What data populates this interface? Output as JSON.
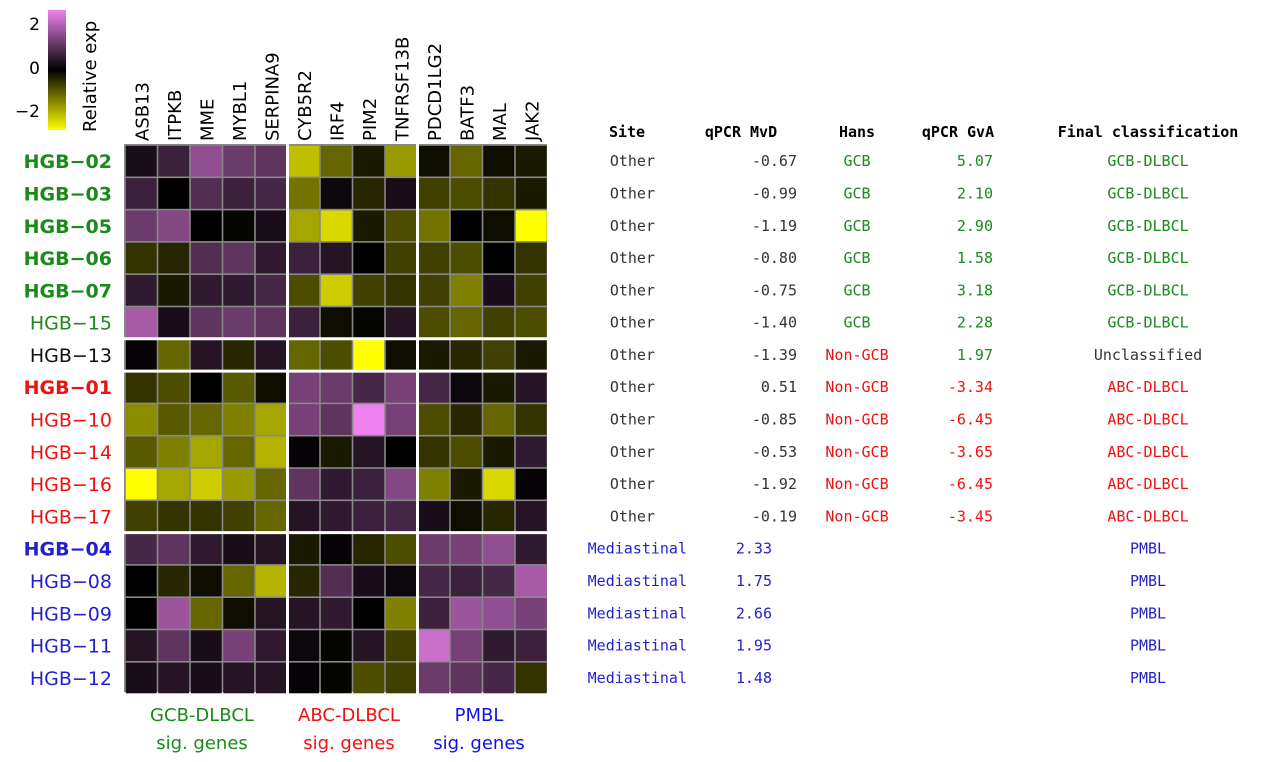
{
  "chart_data": {
    "type": "heatmap",
    "legend": {
      "title": "Relative exp",
      "ticks": [
        "2",
        "0",
        "−2"
      ],
      "range": [
        -2,
        2
      ],
      "colors": {
        "low": "#ffff00",
        "mid": "#000000",
        "high": "#ee82ee"
      }
    },
    "genes": [
      "ASB13",
      "ITPKB",
      "MME",
      "MYBL1",
      "SERPINA9",
      "CYB5R2",
      "IRF4",
      "PIM2",
      "TNFRSF13B",
      "PDCD1LG2",
      "BATF3",
      "MAL",
      "JAK2"
    ],
    "gene_groups": [
      {
        "line1": "GCB-DLBCL",
        "line2": "sig. genes",
        "color": "#1a8a1a"
      },
      {
        "line1": "ABC-DLBCL",
        "line2": "sig. genes",
        "color": "#ee1111"
      },
      {
        "line1": "PMBL",
        "line2": "sig. genes",
        "color": "#1111ee"
      }
    ],
    "table_headers": [
      "Site",
      "qPCR MvD",
      "Hans",
      "qPCR GvA",
      "Final classification"
    ],
    "status_colors": {
      "gcb": "#1a8a1a",
      "abc": "#ee1111",
      "pmbl": "#2222cc",
      "other": "#111111"
    },
    "samples": [
      {
        "id": "HGB−02",
        "bold": true,
        "cls": "gcb",
        "site": "Other",
        "mvd": "-0.67",
        "hans": "GCB",
        "gva": "5.07",
        "final": "GCB-DLBCL"
      },
      {
        "id": "HGB−03",
        "bold": true,
        "cls": "gcb",
        "site": "Other",
        "mvd": "-0.99",
        "hans": "GCB",
        "gva": "2.10",
        "final": "GCB-DLBCL"
      },
      {
        "id": "HGB−05",
        "bold": true,
        "cls": "gcb",
        "site": "Other",
        "mvd": "-1.19",
        "hans": "GCB",
        "gva": "2.90",
        "final": "GCB-DLBCL"
      },
      {
        "id": "HGB−06",
        "bold": true,
        "cls": "gcb",
        "site": "Other",
        "mvd": "-0.80",
        "hans": "GCB",
        "gva": "1.58",
        "final": "GCB-DLBCL"
      },
      {
        "id": "HGB−07",
        "bold": true,
        "cls": "gcb",
        "site": "Other",
        "mvd": "-0.75",
        "hans": "GCB",
        "gva": "3.18",
        "final": "GCB-DLBCL"
      },
      {
        "id": "HGB−15",
        "bold": false,
        "cls": "gcb",
        "site": "Other",
        "mvd": "-1.40",
        "hans": "GCB",
        "gva": "2.28",
        "final": "GCB-DLBCL"
      },
      {
        "id": "HGB−13",
        "bold": false,
        "cls": "other",
        "site": "Other",
        "mvd": "-1.39",
        "hans": "Non-GCB",
        "gva": "1.97",
        "final": "Unclassified"
      },
      {
        "id": "HGB−01",
        "bold": true,
        "cls": "abc",
        "site": "Other",
        "mvd": "0.51",
        "hans": "Non-GCB",
        "gva": "-3.34",
        "final": "ABC-DLBCL"
      },
      {
        "id": "HGB−10",
        "bold": false,
        "cls": "abc",
        "site": "Other",
        "mvd": "-0.85",
        "hans": "Non-GCB",
        "gva": "-6.45",
        "final": "ABC-DLBCL"
      },
      {
        "id": "HGB−14",
        "bold": false,
        "cls": "abc",
        "site": "Other",
        "mvd": "-0.53",
        "hans": "Non-GCB",
        "gva": "-3.65",
        "final": "ABC-DLBCL"
      },
      {
        "id": "HGB−16",
        "bold": false,
        "cls": "abc",
        "site": "Other",
        "mvd": "-1.92",
        "hans": "Non-GCB",
        "gva": "-6.45",
        "final": "ABC-DLBCL"
      },
      {
        "id": "HGB−17",
        "bold": false,
        "cls": "abc",
        "site": "Other",
        "mvd": "-0.19",
        "hans": "Non-GCB",
        "gva": "-3.45",
        "final": "ABC-DLBCL"
      },
      {
        "id": "HGB−04",
        "bold": true,
        "cls": "pmbl",
        "site": "Mediastinal",
        "mvd": "2.33",
        "hans": "",
        "gva": "",
        "final": "PMBL"
      },
      {
        "id": "HGB−08",
        "bold": false,
        "cls": "pmbl",
        "site": "Mediastinal",
        "mvd": "1.75",
        "hans": "",
        "gva": "",
        "final": "PMBL"
      },
      {
        "id": "HGB−09",
        "bold": false,
        "cls": "pmbl",
        "site": "Mediastinal",
        "mvd": "2.66",
        "hans": "",
        "gva": "",
        "final": "PMBL"
      },
      {
        "id": "HGB−11",
        "bold": false,
        "cls": "pmbl",
        "site": "Mediastinal",
        "mvd": "1.95",
        "hans": "",
        "gva": "",
        "final": "PMBL"
      },
      {
        "id": "HGB−12",
        "bold": false,
        "cls": "pmbl",
        "site": "Mediastinal",
        "mvd": "1.48",
        "hans": "",
        "gva": "",
        "final": "PMBL"
      }
    ],
    "values": [
      [
        0.2,
        0.5,
        1.2,
        0.9,
        0.8,
        -1.5,
        -0.8,
        -0.2,
        -1.2,
        -0.1,
        -0.8,
        -0.1,
        -0.2
      ],
      [
        0.5,
        0.0,
        0.7,
        0.5,
        0.6,
        -0.9,
        0.1,
        -0.3,
        0.2,
        -0.5,
        -0.6,
        -0.4,
        -0.2
      ],
      [
        0.9,
        1.1,
        0.0,
        -0.05,
        0.2,
        -1.3,
        -1.7,
        -0.2,
        -0.6,
        -0.9,
        0.0,
        -0.1,
        -2.0
      ],
      [
        -0.4,
        -0.3,
        0.7,
        0.8,
        0.4,
        0.5,
        0.3,
        0.0,
        -0.5,
        -0.5,
        -0.6,
        0.0,
        -0.4
      ],
      [
        0.4,
        -0.2,
        0.4,
        0.4,
        0.6,
        -0.6,
        -1.6,
        -0.5,
        -0.4,
        -0.5,
        -1.0,
        0.2,
        -0.5
      ],
      [
        1.4,
        0.2,
        0.8,
        0.9,
        0.8,
        0.5,
        -0.1,
        -0.05,
        0.3,
        -0.6,
        -0.8,
        -0.5,
        -0.6
      ],
      [
        0.05,
        -0.8,
        0.3,
        -0.3,
        0.3,
        -0.8,
        -0.6,
        -2.0,
        -0.1,
        -0.2,
        -0.3,
        -0.5,
        -0.2
      ],
      [
        -0.4,
        -0.6,
        0.0,
        -0.7,
        -0.1,
        1.0,
        0.9,
        0.6,
        1.0,
        0.6,
        0.1,
        -0.2,
        0.3
      ],
      [
        -1.1,
        -0.7,
        -0.8,
        -1.0,
        -1.3,
        1.0,
        0.8,
        2.0,
        1.0,
        -0.6,
        -0.3,
        -0.8,
        -0.4
      ],
      [
        -0.7,
        -1.0,
        -1.3,
        -0.8,
        -1.4,
        0.05,
        -0.2,
        0.3,
        0.0,
        -0.4,
        -0.6,
        -0.2,
        0.4
      ],
      [
        -2.0,
        -1.3,
        -1.6,
        -1.2,
        -0.8,
        0.8,
        0.4,
        0.5,
        1.1,
        -1.0,
        -0.2,
        -1.7,
        0.05
      ],
      [
        -0.5,
        -0.4,
        -0.4,
        -0.5,
        -0.8,
        0.3,
        0.4,
        0.5,
        0.6,
        0.2,
        -0.1,
        -0.3,
        0.3
      ],
      [
        0.6,
        0.8,
        0.4,
        0.2,
        0.3,
        -0.2,
        0.05,
        -0.3,
        -0.6,
        0.9,
        1.0,
        1.2,
        0.4
      ],
      [
        0.0,
        -0.3,
        -0.1,
        -0.8,
        -1.4,
        -0.3,
        0.7,
        0.2,
        0.1,
        0.6,
        0.5,
        0.6,
        1.4
      ],
      [
        0.0,
        1.3,
        -0.8,
        -0.1,
        0.3,
        0.3,
        0.4,
        0.0,
        -1.0,
        0.5,
        1.3,
        1.2,
        1.0
      ],
      [
        0.3,
        0.8,
        0.2,
        1.0,
        0.4,
        0.1,
        -0.05,
        0.3,
        -0.5,
        1.7,
        1.0,
        0.4,
        0.5
      ],
      [
        0.2,
        0.3,
        0.2,
        0.3,
        0.3,
        0.05,
        -0.05,
        -0.6,
        -0.5,
        0.9,
        0.8,
        0.6,
        -0.4
      ]
    ]
  }
}
